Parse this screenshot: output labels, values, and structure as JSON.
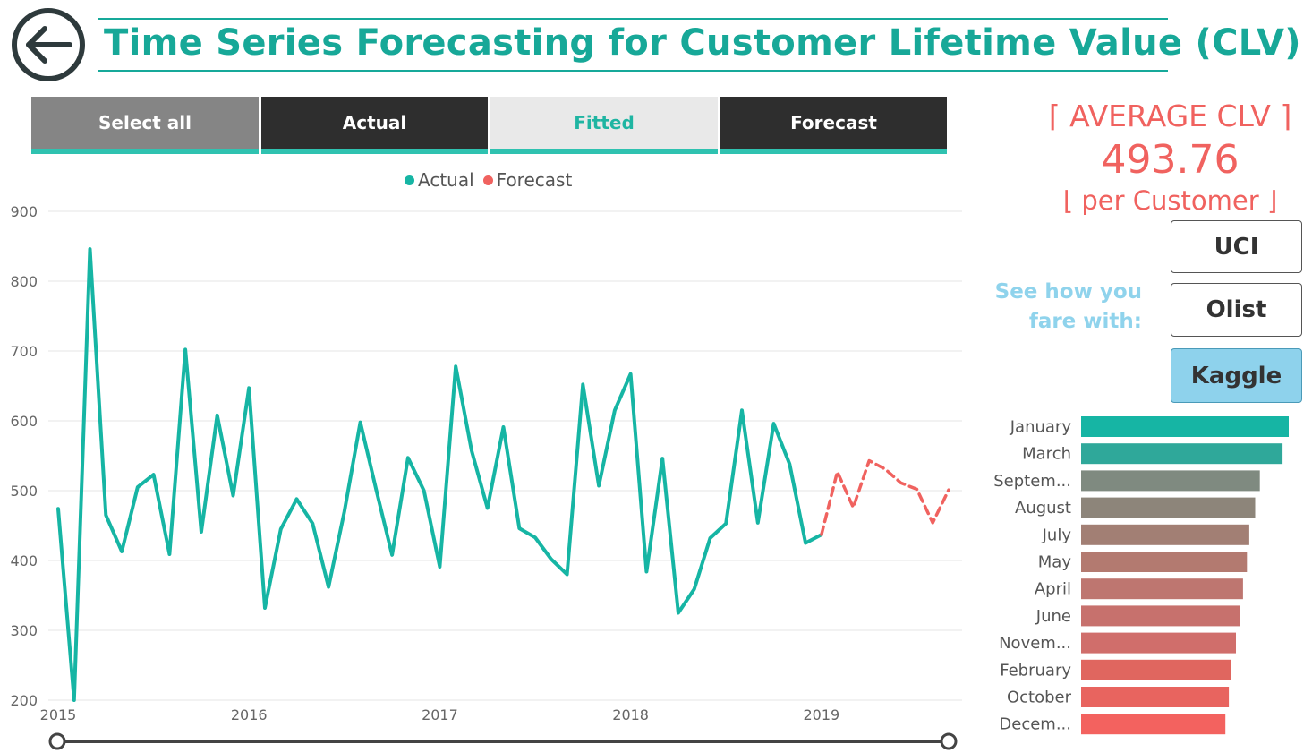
{
  "header": {
    "title": "Time Series Forecasting for Customer Lifetime Value (CLV)",
    "back_icon": "arrow-left-circle-icon"
  },
  "series_selector": {
    "items": [
      {
        "label": "Select all",
        "state": "gray"
      },
      {
        "label": "Actual",
        "state": "dark"
      },
      {
        "label": "Fitted",
        "state": "light"
      },
      {
        "label": "Forecast",
        "state": "dark"
      }
    ]
  },
  "kpi": {
    "label": "⌈ AVERAGE CLV ⌉",
    "value": "493.76",
    "sublabel": "⌊ per Customer ⌋"
  },
  "compare": {
    "prompt_line1": "See how you",
    "prompt_line2": "fare with:",
    "buttons": [
      {
        "label": "UCI",
        "active": false
      },
      {
        "label": "Olist",
        "active": false
      },
      {
        "label": "Kaggle",
        "active": true
      }
    ]
  },
  "colors": {
    "actual": "#16b5a4",
    "forecast": "#f0625f",
    "title": "#17a898",
    "accent_bar": "#2fc2b0",
    "gridline": "#e6e6e6",
    "axis_text": "#666666",
    "slider": "#444444"
  },
  "chart_data": [
    {
      "type": "line",
      "title": "",
      "legend": [
        "Actual",
        "Forecast"
      ],
      "xlabel": "",
      "ylabel": "",
      "ylim": [
        200,
        900
      ],
      "yticks": [
        200,
        300,
        400,
        500,
        600,
        700,
        800,
        900
      ],
      "xticks": [
        "2015",
        "2016",
        "2017",
        "2018",
        "2019"
      ],
      "series": [
        {
          "name": "Actual",
          "style": "solid",
          "x": [
            2015.0,
            2015.0833,
            2015.1667,
            2015.25,
            2015.3333,
            2015.4167,
            2015.5,
            2015.5833,
            2015.6667,
            2015.75,
            2015.8333,
            2015.9167,
            2016.0,
            2016.0833,
            2016.1667,
            2016.25,
            2016.3333,
            2016.4167,
            2016.5,
            2016.5833,
            2016.6667,
            2016.75,
            2016.8333,
            2016.9167,
            2017.0,
            2017.0833,
            2017.1667,
            2017.25,
            2017.3333,
            2017.4167,
            2017.5,
            2017.5833,
            2017.6667,
            2017.75,
            2017.8333,
            2017.9167,
            2018.0,
            2018.0833,
            2018.1667,
            2018.25,
            2018.3333,
            2018.4167,
            2018.5,
            2018.5833,
            2018.6667,
            2018.75,
            2018.8333,
            2018.9167,
            2019.0
          ],
          "values": [
            474,
            200,
            846,
            465,
            413,
            505,
            523,
            409,
            702,
            441,
            608,
            493,
            647,
            332,
            445,
            488,
            453,
            362,
            470,
            598,
            501,
            408,
            547,
            500,
            391,
            678,
            557,
            475,
            591,
            446,
            433,
            402,
            380,
            652,
            507,
            615,
            667,
            384,
            546,
            325,
            359,
            432,
            453,
            615,
            454,
            596,
            538,
            425,
            437
          ]
        },
        {
          "name": "Forecast",
          "style": "dashed",
          "x": [
            2019.0,
            2019.0833,
            2019.1667,
            2019.25,
            2019.3333,
            2019.4167,
            2019.5,
            2019.5833,
            2019.6667
          ],
          "values": [
            437,
            527,
            476,
            543,
            531,
            511,
            502,
            454,
            501
          ]
        }
      ]
    },
    {
      "type": "bar",
      "orientation": "horizontal",
      "title": "",
      "categories": [
        "January",
        "March",
        "Septem...",
        "August",
        "July",
        "May",
        "April",
        "June",
        "Novem...",
        "February",
        "October",
        "Decem..."
      ],
      "values": [
        548,
        514,
        456,
        444,
        429,
        423,
        413,
        405,
        395,
        382,
        377,
        368
      ],
      "xlim": [
        0,
        600
      ],
      "colors": [
        "#16b5a4",
        "#2fa89a",
        "#7f8a80",
        "#8d857a",
        "#a27f74",
        "#b37a70",
        "#be7670",
        "#c7716d",
        "#d06e6b",
        "#e0665f",
        "#e8645f",
        "#f3625f"
      ]
    }
  ]
}
